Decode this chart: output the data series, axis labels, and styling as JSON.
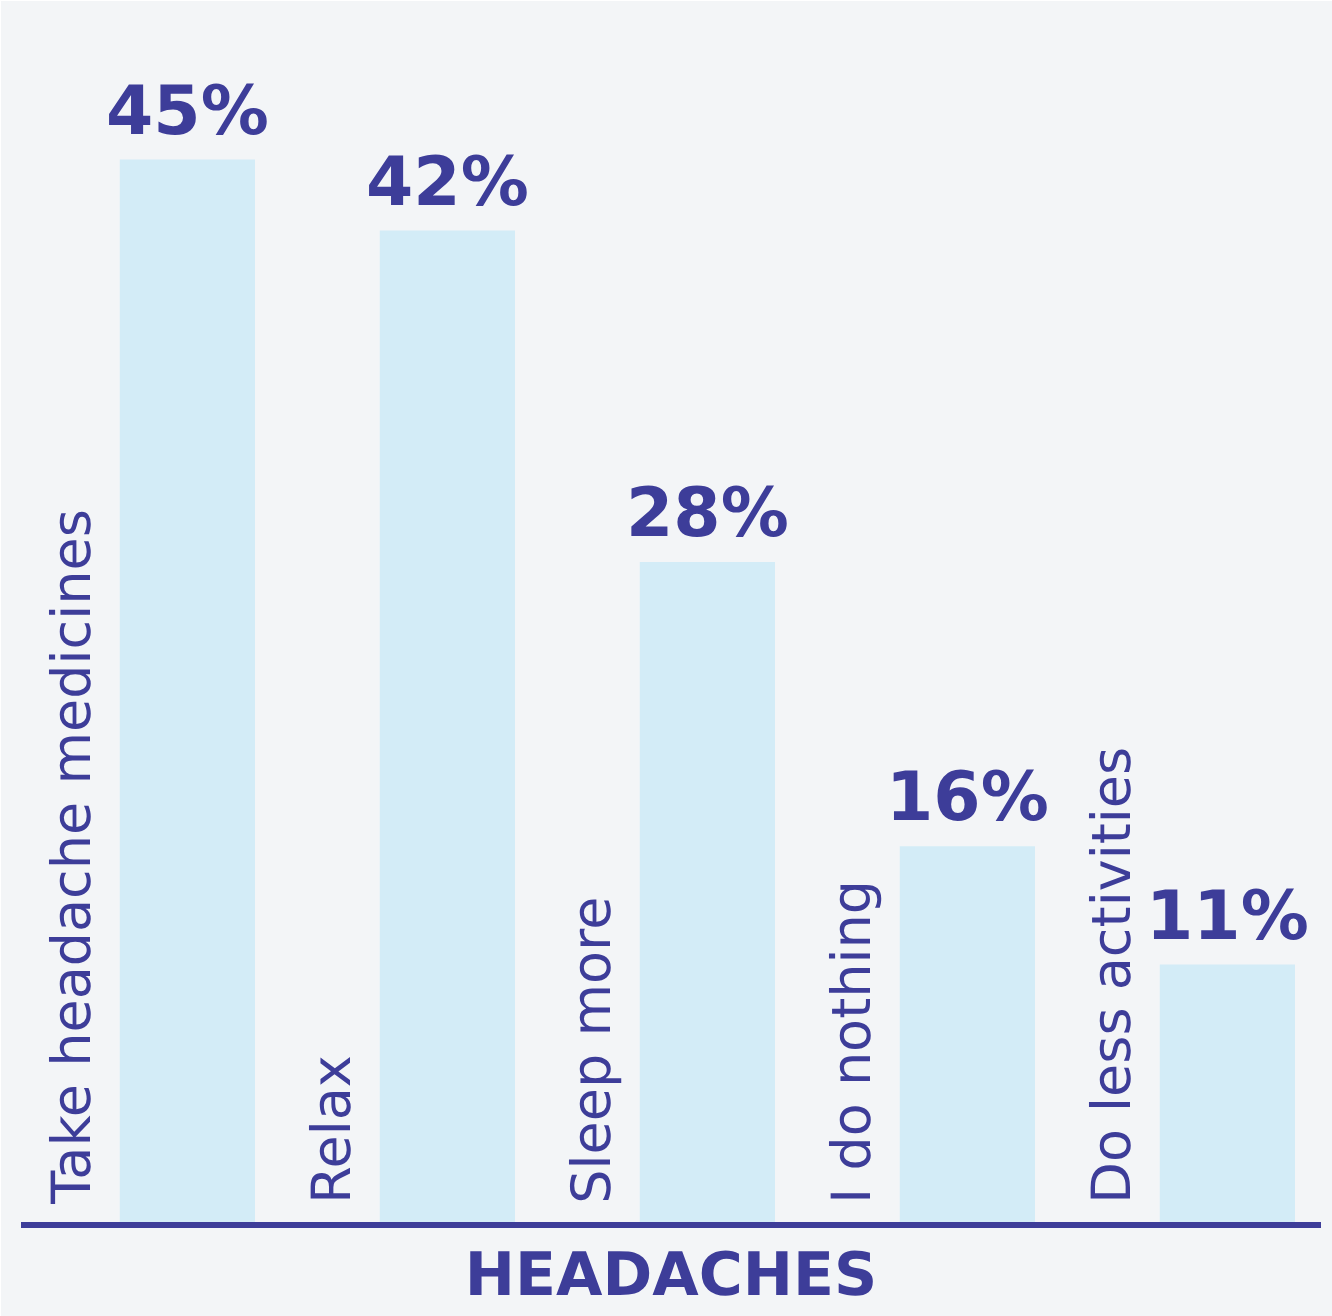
{
  "chart_data": {
    "type": "bar",
    "xlabel": "HEADACHES",
    "categories": [
      "Take headache medicines",
      "Relax",
      "Sleep more",
      "I do nothing",
      "Do less activities"
    ],
    "values": [
      45,
      42,
      28,
      16,
      11
    ],
    "value_labels": [
      "45%",
      "42%",
      "28%",
      "16%",
      "11%"
    ],
    "color": "#d3ecf7",
    "grid": false
  }
}
